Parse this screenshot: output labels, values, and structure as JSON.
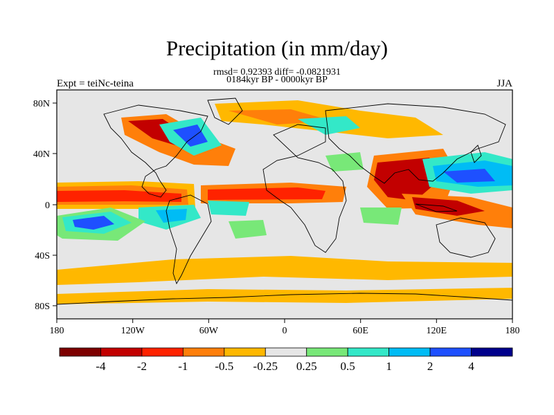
{
  "title": "Precipitation (in mm/day)",
  "stats": "rmsd= 0.92393 diff= -0.0821931",
  "period": "0184kyr BP - 0000kyr BP",
  "experiment": "Expt = teiNc-teina",
  "season": "JJA",
  "lon_ticks": [
    "180",
    "120W",
    "60W",
    "0",
    "60E",
    "120E",
    "180"
  ],
  "lat_ticks": [
    "80N",
    "40N",
    "0",
    "40S",
    "80S"
  ],
  "colorbar": {
    "colors": [
      "#7d0000",
      "#c20000",
      "#ff2200",
      "#ff7f0a",
      "#ffb800",
      "#e6e6e6",
      "#78e878",
      "#33e8c8",
      "#00bcf5",
      "#1e50ff",
      "#00008c"
    ],
    "labels": [
      "-4",
      "-2",
      "-1",
      "-0.5",
      "-0.25",
      "0.25",
      "0.5",
      "1",
      "2",
      "4"
    ]
  },
  "colors": {
    "background_field": "#e6e6e6",
    "strong_wet": "#1e50ff",
    "strong_dry": "#c20000"
  }
}
